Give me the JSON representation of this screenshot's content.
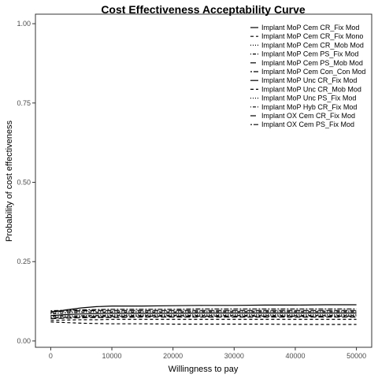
{
  "chart_data": {
    "type": "line",
    "title": "Cost Effectiveness Acceptability Curve",
    "xlabel": "Willingness to pay",
    "ylabel": "Probability of cost effectiveness",
    "xlim": [
      -2500,
      52500
    ],
    "ylim": [
      -0.02,
      1.03
    ],
    "xticks": [
      0,
      10000,
      20000,
      30000,
      40000,
      50000
    ],
    "xtick_labels": [
      "0",
      "10000",
      "20000",
      "30000",
      "40000",
      "50000"
    ],
    "yticks": [
      0,
      0.25,
      0.5,
      0.75,
      1.0
    ],
    "ytick_labels": [
      "0.00",
      "0.25",
      "0.50",
      "0.75",
      "1.00"
    ],
    "grid": false,
    "legend_position": "top-right",
    "x": [
      0,
      2500,
      5000,
      7500,
      10000,
      15000,
      20000,
      25000,
      30000,
      35000,
      40000,
      45000,
      50000
    ],
    "series": [
      {
        "name": "Implant MoP Cem CR_Fix Mod",
        "dash": "solid",
        "values": [
          0.09,
          0.098,
          0.104,
          0.108,
          0.11,
          0.11,
          0.111,
          0.112,
          0.112,
          0.113,
          0.113,
          0.114,
          0.114
        ]
      },
      {
        "name": "Implant MoP Cem CR_Fix Mono",
        "dash": "dashed",
        "values": [
          0.06,
          0.058,
          0.056,
          0.055,
          0.054,
          0.054,
          0.053,
          0.053,
          0.053,
          0.053,
          0.052,
          0.052,
          0.052
        ]
      },
      {
        "name": "Implant MoP Cem CR_Mob Mod",
        "dash": "dotted",
        "values": [
          0.075,
          0.078,
          0.08,
          0.081,
          0.082,
          0.082,
          0.082,
          0.083,
          0.083,
          0.083,
          0.083,
          0.083,
          0.083
        ]
      },
      {
        "name": "Implant MoP Cem PS_Fix Mod",
        "dash": "dotdash",
        "values": [
          0.085,
          0.088,
          0.09,
          0.09,
          0.091,
          0.091,
          0.091,
          0.092,
          0.092,
          0.092,
          0.092,
          0.092,
          0.092
        ]
      },
      {
        "name": "Implant MoP Cem PS_Mob Mod",
        "dash": "longdash",
        "values": [
          0.07,
          0.072,
          0.073,
          0.074,
          0.074,
          0.075,
          0.075,
          0.075,
          0.075,
          0.075,
          0.075,
          0.075,
          0.075
        ]
      },
      {
        "name": "Implant MoP Cem Con_Con Mod",
        "dash": "twodash",
        "values": [
          0.095,
          0.097,
          0.098,
          0.099,
          0.1,
          0.1,
          0.1,
          0.101,
          0.101,
          0.101,
          0.101,
          0.101,
          0.101
        ]
      },
      {
        "name": "Implant MoP Unc CR_Fix Mod",
        "dash": "solid",
        "values": [
          0.08,
          0.083,
          0.085,
          0.086,
          0.087,
          0.087,
          0.087,
          0.088,
          0.088,
          0.088,
          0.088,
          0.088,
          0.088
        ]
      },
      {
        "name": "Implant MoP Unc CR_Mob Mod",
        "dash": "dashed",
        "values": [
          0.065,
          0.066,
          0.067,
          0.067,
          0.068,
          0.068,
          0.068,
          0.068,
          0.068,
          0.068,
          0.068,
          0.068,
          0.068
        ]
      },
      {
        "name": "Implant MoP Unc PS_Fix Mod",
        "dash": "dotted",
        "values": [
          0.088,
          0.09,
          0.092,
          0.093,
          0.094,
          0.094,
          0.094,
          0.095,
          0.095,
          0.095,
          0.095,
          0.095,
          0.095
        ]
      },
      {
        "name": "Implant MoP Hyb CR_Fix Mod",
        "dash": "dotdash",
        "values": [
          0.078,
          0.079,
          0.079,
          0.08,
          0.08,
          0.08,
          0.08,
          0.08,
          0.08,
          0.08,
          0.08,
          0.08,
          0.08
        ]
      },
      {
        "name": "Implant OX Cem CR_Fix Mod",
        "dash": "longdash",
        "values": [
          0.092,
          0.094,
          0.095,
          0.096,
          0.096,
          0.096,
          0.096,
          0.096,
          0.096,
          0.096,
          0.096,
          0.096,
          0.096
        ]
      },
      {
        "name": "Implant OX Cem PS_Fix Mod",
        "dash": "twodash",
        "values": [
          0.072,
          0.074,
          0.076,
          0.077,
          0.077,
          0.078,
          0.078,
          0.078,
          0.078,
          0.078,
          0.078,
          0.078,
          0.078
        ]
      }
    ]
  }
}
